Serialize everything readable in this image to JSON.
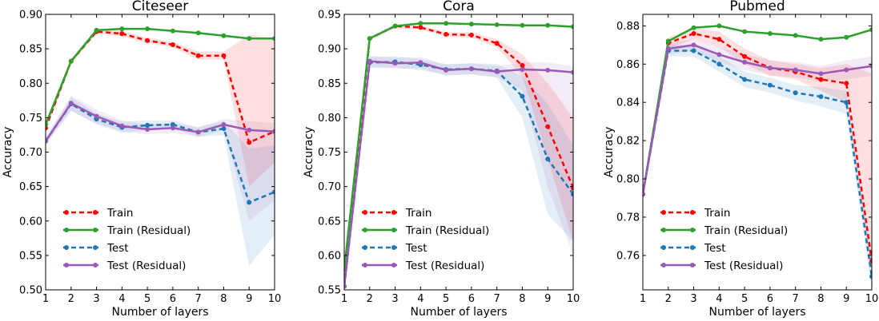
{
  "chart_data": [
    {
      "type": "line",
      "title": "Citeseer",
      "xlabel": "Number of layers",
      "ylabel": "Accuracy",
      "xlim": [
        1,
        10
      ],
      "ylim": [
        0.5,
        0.9
      ],
      "xticks": [
        "1",
        "2",
        "3",
        "4",
        "5",
        "6",
        "7",
        "8",
        "9",
        "10"
      ],
      "yticks": [
        "0.50",
        "0.55",
        "0.60",
        "0.65",
        "0.70",
        "0.75",
        "0.80",
        "0.85",
        "0.90"
      ],
      "legend_position": "lower-left",
      "x": [
        1,
        2,
        3,
        4,
        5,
        6,
        7,
        8,
        9,
        10
      ],
      "series": [
        {
          "name": "Train",
          "color": "#ff0000",
          "style": "dashed",
          "values": [
            0.735,
            0.832,
            0.875,
            0.872,
            0.862,
            0.856,
            0.84,
            0.84,
            0.714,
            0.73
          ],
          "band_lower": [
            0.73,
            0.828,
            0.872,
            0.868,
            0.858,
            0.852,
            0.834,
            0.834,
            0.65,
            0.685
          ],
          "band_upper": [
            0.74,
            0.836,
            0.878,
            0.876,
            0.866,
            0.86,
            0.846,
            0.846,
            0.87,
            0.865
          ]
        },
        {
          "name": "Train (Residual)",
          "color": "#2ca02c",
          "style": "solid",
          "values": [
            0.74,
            0.832,
            0.877,
            0.879,
            0.879,
            0.876,
            0.873,
            0.869,
            0.865,
            0.865
          ]
        },
        {
          "name": "Test",
          "color": "#1f77b4",
          "style": "dashed",
          "values": [
            0.716,
            0.77,
            0.748,
            0.736,
            0.739,
            0.74,
            0.729,
            0.734,
            0.627,
            0.642
          ],
          "band_lower": [
            0.712,
            0.76,
            0.74,
            0.728,
            0.732,
            0.734,
            0.722,
            0.725,
            0.535,
            0.58
          ],
          "band_upper": [
            0.72,
            0.78,
            0.756,
            0.744,
            0.746,
            0.746,
            0.736,
            0.745,
            0.705,
            0.71
          ]
        },
        {
          "name": "Test (Residual)",
          "color": "#9b59b6",
          "style": "solid",
          "values": [
            0.716,
            0.771,
            0.752,
            0.738,
            0.733,
            0.735,
            0.729,
            0.74,
            0.732,
            0.73
          ],
          "band_lower": [
            0.71,
            0.76,
            0.742,
            0.73,
            0.726,
            0.728,
            0.722,
            0.732,
            0.6,
            0.63
          ],
          "band_upper": [
            0.722,
            0.782,
            0.762,
            0.746,
            0.74,
            0.742,
            0.736,
            0.748,
            0.745,
            0.742
          ]
        }
      ]
    },
    {
      "type": "line",
      "title": "Cora",
      "xlabel": "Number of layers",
      "ylabel": "Accuracy",
      "xlim": [
        1,
        10
      ],
      "ylim": [
        0.55,
        0.95
      ],
      "xticks": [
        "1",
        "2",
        "3",
        "4",
        "5",
        "6",
        "7",
        "8",
        "9",
        "10"
      ],
      "yticks": [
        "0.55",
        "0.60",
        "0.65",
        "0.70",
        "0.75",
        "0.80",
        "0.85",
        "0.90",
        "0.95"
      ],
      "legend_position": "lower-left",
      "x": [
        1,
        2,
        3,
        4,
        5,
        6,
        7,
        8,
        9,
        10
      ],
      "series": [
        {
          "name": "Train",
          "color": "#ff0000",
          "style": "dashed",
          "values": [
            0.555,
            0.915,
            0.933,
            0.931,
            0.921,
            0.92,
            0.908,
            0.876,
            0.787,
            0.698
          ],
          "band_lower": [
            0.55,
            0.912,
            0.93,
            0.928,
            0.918,
            0.916,
            0.902,
            0.86,
            0.74,
            0.62
          ],
          "band_upper": [
            0.56,
            0.918,
            0.936,
            0.934,
            0.924,
            0.924,
            0.914,
            0.892,
            0.85,
            0.8
          ]
        },
        {
          "name": "Train (Residual)",
          "color": "#2ca02c",
          "style": "solid",
          "values": [
            0.58,
            0.915,
            0.933,
            0.937,
            0.937,
            0.936,
            0.935,
            0.934,
            0.934,
            0.932
          ]
        },
        {
          "name": "Test",
          "color": "#1f77b4",
          "style": "dashed",
          "values": [
            0.555,
            0.88,
            0.881,
            0.877,
            0.87,
            0.871,
            0.868,
            0.831,
            0.74,
            0.689
          ],
          "band_lower": [
            0.55,
            0.872,
            0.873,
            0.869,
            0.862,
            0.863,
            0.858,
            0.8,
            0.66,
            0.62
          ],
          "band_upper": [
            0.56,
            0.888,
            0.889,
            0.885,
            0.878,
            0.879,
            0.878,
            0.86,
            0.82,
            0.76
          ]
        },
        {
          "name": "Test (Residual)",
          "color": "#9b59b6",
          "style": "solid",
          "values": [
            0.555,
            0.882,
            0.879,
            0.88,
            0.869,
            0.871,
            0.867,
            0.87,
            0.869,
            0.866
          ],
          "band_lower": [
            0.55,
            0.874,
            0.871,
            0.872,
            0.861,
            0.863,
            0.859,
            0.84,
            0.7,
            0.6
          ],
          "band_upper": [
            0.56,
            0.89,
            0.887,
            0.888,
            0.877,
            0.879,
            0.875,
            0.88,
            0.88,
            0.875
          ]
        }
      ]
    },
    {
      "type": "line",
      "title": "Pubmed",
      "xlabel": "Number of layers",
      "ylabel": "Accuracy",
      "xlim": [
        1,
        10
      ],
      "ylim": [
        0.742,
        0.886
      ],
      "xticks": [
        "1",
        "2",
        "3",
        "4",
        "5",
        "6",
        "7",
        "8",
        "9",
        "10"
      ],
      "yticks": [
        "0.76",
        "0.78",
        "0.80",
        "0.82",
        "0.84",
        "0.86",
        "0.88"
      ],
      "legend_position": "lower-left",
      "x": [
        1,
        2,
        3,
        4,
        5,
        6,
        7,
        8,
        9,
        10
      ],
      "series": [
        {
          "name": "Train",
          "color": "#ff0000",
          "style": "dashed",
          "values": [
            0.792,
            0.871,
            0.876,
            0.873,
            0.864,
            0.858,
            0.856,
            0.852,
            0.85,
            0.757
          ],
          "band_lower": [
            0.789,
            0.868,
            0.873,
            0.869,
            0.86,
            0.854,
            0.852,
            0.846,
            0.84,
            0.75
          ],
          "band_upper": [
            0.795,
            0.874,
            0.879,
            0.877,
            0.868,
            0.862,
            0.86,
            0.858,
            0.86,
            0.855
          ]
        },
        {
          "name": "Train (Residual)",
          "color": "#2ca02c",
          "style": "solid",
          "values": [
            0.792,
            0.872,
            0.879,
            0.88,
            0.877,
            0.876,
            0.875,
            0.873,
            0.874,
            0.878
          ]
        },
        {
          "name": "Test",
          "color": "#1f77b4",
          "style": "dashed",
          "values": [
            0.792,
            0.867,
            0.867,
            0.86,
            0.852,
            0.849,
            0.845,
            0.843,
            0.84,
            0.749
          ],
          "band_lower": [
            0.789,
            0.864,
            0.864,
            0.856,
            0.848,
            0.845,
            0.841,
            0.838,
            0.834,
            0.742
          ],
          "band_upper": [
            0.795,
            0.87,
            0.87,
            0.864,
            0.856,
            0.853,
            0.849,
            0.848,
            0.846,
            0.76
          ]
        },
        {
          "name": "Test (Residual)",
          "color": "#9b59b6",
          "style": "solid",
          "values": [
            0.792,
            0.868,
            0.87,
            0.865,
            0.861,
            0.858,
            0.857,
            0.855,
            0.857,
            0.859
          ],
          "band_lower": [
            0.789,
            0.865,
            0.867,
            0.861,
            0.857,
            0.854,
            0.853,
            0.851,
            0.852,
            0.854
          ],
          "band_upper": [
            0.795,
            0.871,
            0.873,
            0.869,
            0.865,
            0.862,
            0.861,
            0.859,
            0.862,
            0.864
          ]
        }
      ]
    }
  ]
}
